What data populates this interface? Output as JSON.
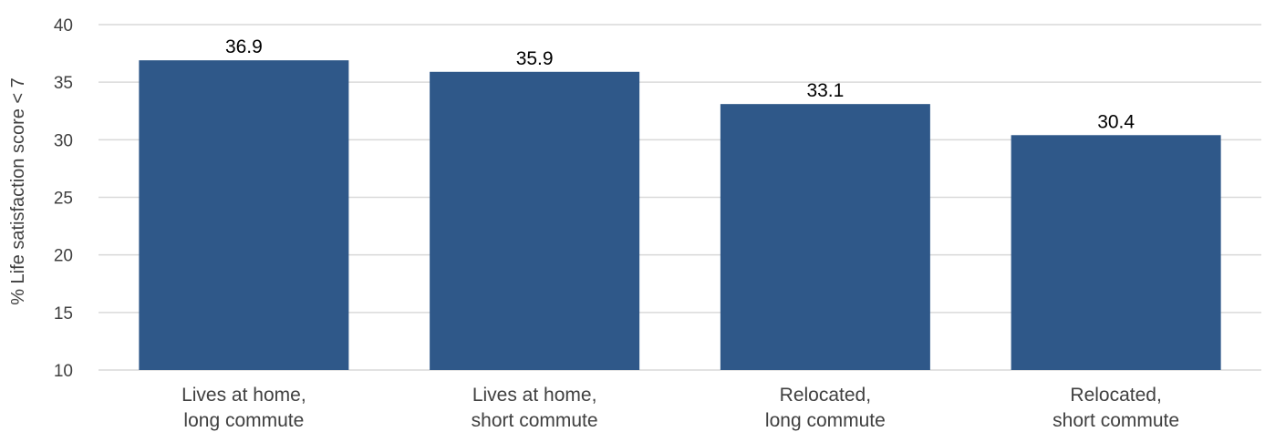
{
  "chart_data": {
    "type": "bar",
    "title": "",
    "xlabel": "",
    "ylabel": "% Life satisfaction score < 7",
    "ylim": [
      10,
      40
    ],
    "yticks": [
      "10",
      "15",
      "20",
      "25",
      "30",
      "35",
      "40"
    ],
    "grid": true,
    "legend": "none",
    "bar_color": "#2f5889",
    "categories": [
      [
        "Lives at home,",
        "long commute"
      ],
      [
        "Lives at home,",
        "short commute"
      ],
      [
        "Relocated,",
        "long commute"
      ],
      [
        "Relocated,",
        "short commute"
      ]
    ],
    "values": [
      36.9,
      35.9,
      33.1,
      30.4
    ],
    "value_labels": [
      "36.9",
      "35.9",
      "33.1",
      "30.4"
    ]
  }
}
